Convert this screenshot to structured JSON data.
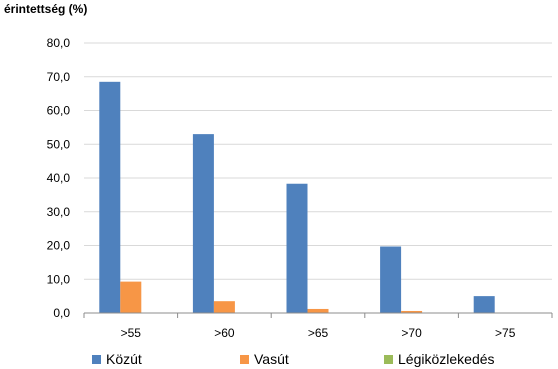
{
  "chart_data": {
    "type": "bar",
    "ylabel": "érintettség (%)",
    "xlabel": "",
    "categories": [
      ">55",
      ">60",
      ">65",
      ">70",
      ">75"
    ],
    "series": [
      {
        "name": "Közút",
        "color": "#4f81bd",
        "values": [
          68.5,
          53.0,
          38.3,
          19.7,
          5.0
        ]
      },
      {
        "name": "Vasút",
        "color": "#f79646",
        "values": [
          9.3,
          3.5,
          1.2,
          0.6,
          0.0
        ]
      },
      {
        "name": "Légiközlekedés",
        "color": "#9bbb59",
        "values": [
          0.0,
          0.0,
          0.0,
          0.0,
          0.0
        ]
      }
    ],
    "ylim": [
      0,
      80
    ],
    "yticks": [
      "0,0",
      "10,0",
      "20,0",
      "30,0",
      "40,0",
      "50,0",
      "60,0",
      "70,0",
      "80,0"
    ],
    "grid": true,
    "legend_position": "bottom"
  }
}
